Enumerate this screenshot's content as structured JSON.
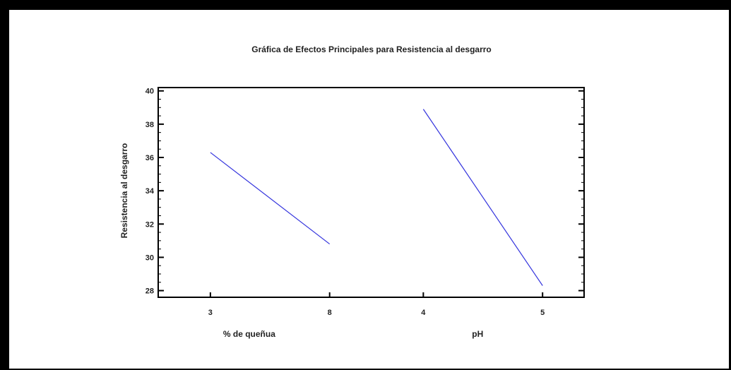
{
  "chart_data": {
    "type": "line",
    "title": "Gráfica de Efectos Principales para Resistencia al desgarro",
    "ylabel": "Resistencia al desgarro",
    "ylim": [
      27.6,
      40.2
    ],
    "yticks": [
      28,
      30,
      32,
      34,
      36,
      38,
      40
    ],
    "grid": false,
    "line_color": "#3333dd",
    "factors": [
      {
        "name": "% de queñua",
        "levels": [
          "3",
          "8"
        ],
        "values": [
          36.3,
          30.8
        ]
      },
      {
        "name": "pH",
        "levels": [
          "4",
          "5"
        ],
        "values": [
          38.9,
          28.3
        ]
      }
    ]
  }
}
